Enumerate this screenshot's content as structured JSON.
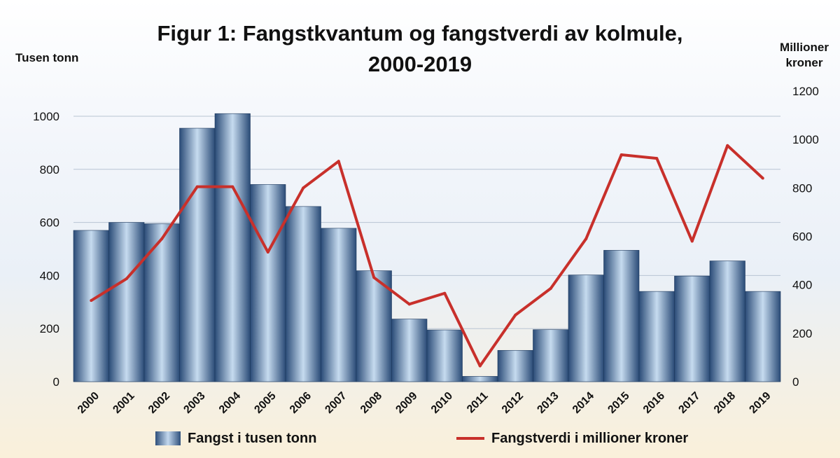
{
  "chart_data": {
    "type": "bar",
    "title": "Figur 1: Fangstkvantum og fangstverdi av kolmule, 2000-2019",
    "title_lines": [
      "Figur 1: Fangstkvantum og fangstverdi av kolmule,",
      "2000-2019"
    ],
    "y_left_label": "Tusen tonn",
    "y_right_label_lines": [
      "Millioner",
      "kroner"
    ],
    "categories": [
      "2000",
      "2001",
      "2002",
      "2003",
      "2004",
      "2005",
      "2006",
      "2007",
      "2008",
      "2009",
      "2010",
      "2011",
      "2012",
      "2013",
      "2014",
      "2015",
      "2016",
      "2017",
      "2018",
      "2019"
    ],
    "ylim_left": [
      0,
      1100
    ],
    "ylim_right": [
      0,
      1200
    ],
    "yticks_left": [
      0,
      200,
      400,
      600,
      800,
      1000
    ],
    "yticks_right": [
      0,
      200,
      400,
      600,
      800,
      1000,
      1200
    ],
    "series": [
      {
        "name": "Fangst i tusen tonn",
        "type": "bar",
        "axis": "left",
        "color": "#2e4f7b",
        "values": [
          570,
          600,
          595,
          955,
          1010,
          743,
          660,
          578,
          418,
          236,
          195,
          20,
          118,
          196,
          402,
          495,
          340,
          398,
          455,
          340
        ]
      },
      {
        "name": "Fangstverdi i millioner kroner",
        "type": "line",
        "axis": "right",
        "color": "#c8302b",
        "values": [
          335,
          425,
          590,
          805,
          805,
          535,
          800,
          910,
          430,
          320,
          365,
          65,
          275,
          385,
          590,
          937,
          922,
          580,
          975,
          840
        ]
      }
    ],
    "legend_position": "bottom",
    "grid": "horizontal"
  }
}
